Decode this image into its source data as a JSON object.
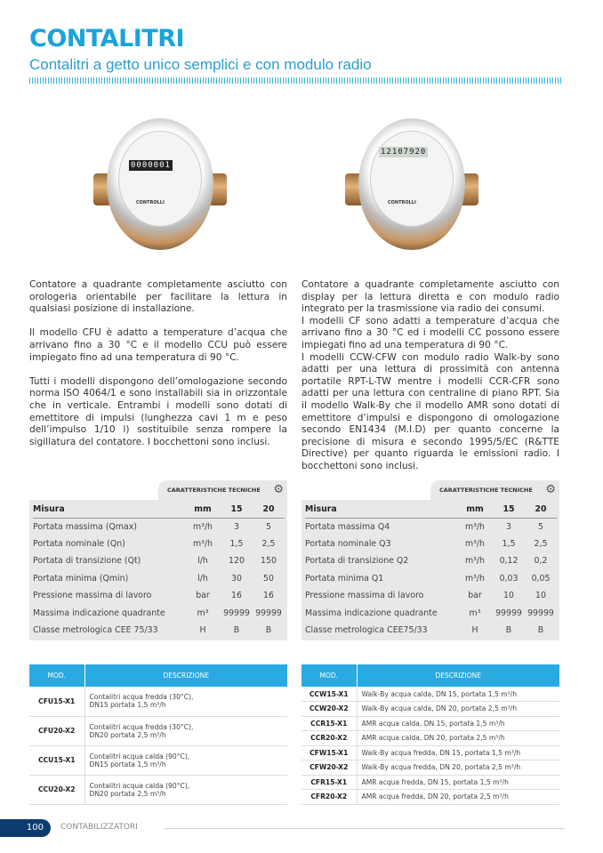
{
  "header": {
    "title": "CONTALITRI",
    "subtitle": "Contalitri a getto unico semplici e con modulo radio"
  },
  "colors": {
    "accent": "#1aa3dc",
    "table_header": "#29aae1",
    "page_badge": "#0d3c6e"
  },
  "images": [
    {
      "digits": "0000001",
      "brand": "CONTROLLI"
    },
    {
      "digits": "12107920",
      "brand": "CONTROLLI"
    }
  ],
  "left_text": [
    "Contatore a quadrante completamente asciutto con orologeria orientabile per facilitare la lettura in qualsiasi posizione di installazione.",
    "Il modello CFU è adatto a temperature d’acqua che arrivano fino a 30 °C e il modello CCU può essere impiegato fino ad una temperatura di 90 °C.",
    "Tutti i modelli dispongono dell’omologazione secondo norma ISO 4064/1 e sono installabili sia in orizzontale che in verticale. Entrambi i modelli sono dotati di emettitore di impulsi (lunghezza cavi 1 m e peso dell’impulso 1/10 l) sostituibile senza rompere la sigillatura del contatore. I bocchettoni sono inclusi."
  ],
  "right_text": [
    "Contatore a quadrante completamente asciutto con display per la lettura diretta e con modulo radio integrato per la trasmissione via radio dei consumi.",
    "I modelli CF sono adatti a temperature d’acqua che arrivano fino a 30 °C ed i modelli CC possono essere impiegati fino ad una temperatura di 90 °C.",
    "I modelli CCW-CFW con modulo radio Walk-by sono adatti per una lettura di prossimità con antenna portatile RPT-L-TW mentre i modelli CCR-CFR sono adatti per una lettura con centraline di piano RPT. Sia il modello Walk-By che il modello AMR sono dotati di emettitore d’impulsi e dispongono di omologazione secondo EN1434 (M.I.D) per quanto concerne la precisione di misura e secondo 1995/5/EC (R&TTE Directive) per quanto riguarda le emissioni radio. I bocchettoni sono inclusi."
  ],
  "spec_left": {
    "tab": "CARATTERISTICHE TECNICHE",
    "icon": "gear-icon",
    "header": [
      "Misura",
      "mm",
      "15",
      "20"
    ],
    "rows": [
      [
        "Portata massima (Qmax)",
        "m³/h",
        "3",
        "5"
      ],
      [
        "Portata nominale (Qn)",
        "m³/h",
        "1,5",
        "2,5"
      ],
      [
        "Portata di transizione (Qt)",
        "l/h",
        "120",
        "150"
      ],
      [
        "Portata minima (Qmin)",
        "l/h",
        "30",
        "50"
      ],
      [
        "Pressione massima di lavoro",
        "bar",
        "16",
        "16"
      ],
      [
        "Massima indicazione quadrante",
        "m³",
        "99999",
        "99999"
      ],
      [
        "Classe metrologica CEE 75/33",
        "H",
        "B",
        "B"
      ]
    ]
  },
  "spec_right": {
    "tab": "CARATTERISTICHE TECNICHE",
    "icon": "gear-icon",
    "header": [
      "Misura",
      "mm",
      "15",
      "20"
    ],
    "rows": [
      [
        "Portata massima Q4",
        "m³/h",
        "3",
        "5"
      ],
      [
        "Portata nominale Q3",
        "m³/h",
        "1,5",
        "2,5"
      ],
      [
        "Portata di transizione Q2",
        "m³/h",
        "0,12",
        "0,2"
      ],
      [
        "Portata minima Q1",
        "m³/h",
        "0,03",
        "0,05"
      ],
      [
        "Pressione massima di lavoro",
        "bar",
        "10",
        "10"
      ],
      [
        "Massima indicazione quadrante",
        "m³",
        "99999",
        "99999"
      ],
      [
        "Classe metrologica CEE75/33",
        "H",
        "B",
        "B"
      ]
    ]
  },
  "models_left": {
    "header": [
      "MOD.",
      "DESCRIZIONE"
    ],
    "rows": [
      [
        "CFU15-X1",
        "Contalitri acqua fredda (30°C),",
        "DN15 portata 1,5 m³/h"
      ],
      [
        "CFU20-X2",
        "Contalitri acqua fredda (30°C),",
        "DN20 portata 2,5 m³/h"
      ],
      [
        "CCU15-X1",
        "Contalitri acqua calda (90°C),",
        "DN15 portata 1,5 m³/h"
      ],
      [
        "CCU20-X2",
        "Contalitri acqua calda (90°C),",
        "DN20 portata 2,5 m³/h"
      ]
    ]
  },
  "models_right": {
    "header": [
      "MOD.",
      "DESCRIZIONE"
    ],
    "rows": [
      [
        "CCW15-X1",
        "Walk-By acqua calda, DN 15, portata 1,5 m³/h"
      ],
      [
        "CCW20-X2",
        "Walk-By acqua calda, DN 20, portata 2,5 m³/h"
      ],
      [
        "CCR15-X1",
        "AMR acqua calda, DN 15, portata 1,5 m³/h"
      ],
      [
        "CCR20-X2",
        "AMR acqua calda, DN 20, portata 2,5 m³/h"
      ],
      [
        "CFW15-X1",
        "Walk-By acqua fredda, DN 15, portata 1,5 m³/h"
      ],
      [
        "CFW20-X2",
        "Walk-By acqua fredda, DN 20, portata 2,5 m³/h"
      ],
      [
        "CFR15-X1",
        "AMR acqua fredda, DN 15, portata 1,5 m³/h"
      ],
      [
        "CFR20-X2",
        "AMR acqua fredda, DN 20, portata 2,5 m³/h"
      ]
    ]
  },
  "footer": {
    "page": "100",
    "section": "CONTABILIZZATORI"
  }
}
